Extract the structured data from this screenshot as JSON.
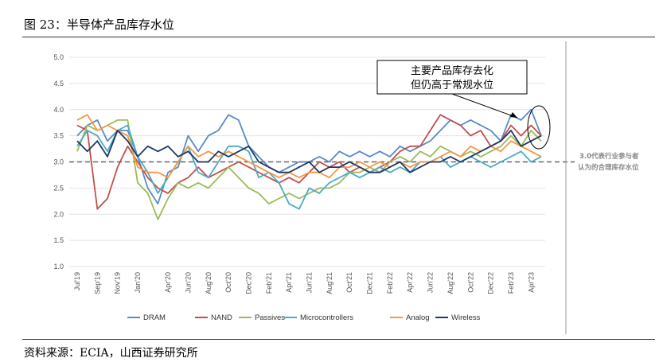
{
  "figure": {
    "title": "图 23：半导体产品库存水位",
    "source": "资料来源：ECIA，山西证券研究所"
  },
  "chart_data": {
    "type": "line",
    "title": "",
    "xlabel": "",
    "ylabel": "",
    "ylim": [
      1.0,
      5.0
    ],
    "yticks": [
      "5.0",
      "4.5",
      "4.0",
      "3.5",
      "3.0",
      "2.5",
      "2.0",
      "1.5",
      "1.0"
    ],
    "xtick_labels": [
      "Jul'19",
      "Sep'19",
      "Nov'19",
      "Jan'20",
      "Apr'20",
      "Jun'20",
      "Aug'20",
      "Oct'20",
      "Dec'20",
      "Feb'21",
      "Apr'21",
      "Jun'21",
      "Aug'21",
      "Oct'21",
      "Dec'21",
      "Feb'22",
      "Apr'22",
      "Jun'22",
      "Aug'22",
      "Oct'22",
      "Dec'22",
      "Feb'23",
      "Apr'23"
    ],
    "x": [
      "Jul'19",
      "Aug'19",
      "Sep'19",
      "Oct'19",
      "Nov'19",
      "Dec'19",
      "Jan'20",
      "Feb'20",
      "Mar'20",
      "Apr'20",
      "May'20",
      "Jun'20",
      "Jul'20",
      "Aug'20",
      "Sep'20",
      "Oct'20",
      "Nov'20",
      "Dec'20",
      "Jan'21",
      "Feb'21",
      "Mar'21",
      "Apr'21",
      "May'21",
      "Jun'21",
      "Jul'21",
      "Aug'21",
      "Sep'21",
      "Oct'21",
      "Nov'21",
      "Dec'21",
      "Jan'22",
      "Feb'22",
      "Mar'22",
      "Apr'22",
      "May'22",
      "Jun'22",
      "Jul'22",
      "Aug'22",
      "Sep'22",
      "Oct'22",
      "Nov'22",
      "Dec'22",
      "Jan'23",
      "Feb'23",
      "Mar'23",
      "Apr'23",
      "May'23"
    ],
    "grid": "horizontal",
    "legend_position": "bottom",
    "reference_line": 3.0,
    "series": [
      {
        "name": "DRAM",
        "color": "#5b8ac4",
        "values": [
          3.5,
          3.7,
          3.8,
          3.4,
          3.6,
          3.6,
          3.1,
          2.5,
          2.2,
          2.8,
          2.9,
          3.5,
          3.2,
          3.5,
          3.6,
          3.9,
          3.8,
          3.3,
          3.1,
          2.9,
          2.8,
          2.9,
          3.0,
          3.0,
          3.1,
          3.0,
          3.2,
          3.1,
          3.2,
          3.1,
          3.2,
          3.1,
          3.3,
          3.2,
          3.3,
          3.4,
          3.6,
          3.8,
          3.7,
          3.8,
          3.7,
          3.6,
          3.4,
          3.9,
          3.8,
          4.0,
          3.5
        ]
      },
      {
        "name": "NAND",
        "color": "#c0504d",
        "values": [
          3.7,
          3.6,
          2.1,
          2.3,
          2.9,
          3.3,
          3.0,
          2.7,
          2.5,
          2.4,
          2.6,
          2.7,
          2.9,
          2.7,
          2.8,
          2.9,
          3.0,
          2.9,
          2.8,
          2.7,
          2.6,
          2.7,
          2.6,
          2.8,
          3.0,
          2.9,
          3.0,
          2.8,
          2.9,
          2.8,
          2.9,
          3.0,
          3.2,
          3.3,
          3.3,
          3.6,
          3.9,
          3.8,
          3.7,
          3.5,
          3.6,
          3.3,
          3.4,
          3.7,
          3.5,
          3.7,
          3.5
        ]
      },
      {
        "name": "Passives",
        "color": "#9bbb59",
        "values": [
          3.2,
          3.7,
          3.6,
          3.7,
          3.8,
          3.8,
          2.6,
          2.4,
          1.9,
          2.3,
          2.6,
          2.5,
          2.6,
          2.5,
          2.7,
          2.9,
          2.7,
          2.5,
          2.4,
          2.2,
          2.3,
          2.4,
          2.3,
          2.4,
          2.5,
          2.5,
          2.6,
          2.8,
          2.8,
          2.9,
          2.8,
          3.0,
          3.1,
          3.0,
          3.2,
          3.1,
          3.3,
          3.2,
          3.1,
          3.2,
          3.1,
          3.2,
          3.3,
          3.5,
          3.3,
          3.6,
          3.4
        ]
      },
      {
        "name": "Microcontrollers",
        "color": "#4bacc6",
        "values": [
          3.3,
          3.6,
          3.5,
          3.2,
          3.6,
          3.7,
          3.1,
          2.8,
          2.4,
          2.7,
          3.0,
          3.3,
          2.8,
          2.7,
          3.0,
          3.3,
          3.3,
          3.2,
          2.7,
          2.8,
          2.6,
          2.2,
          2.1,
          2.5,
          2.4,
          2.6,
          2.7,
          2.8,
          2.7,
          2.8,
          2.9,
          2.8,
          2.9,
          2.8,
          3.0,
          3.0,
          3.1,
          2.9,
          3.0,
          3.1,
          3.0,
          2.9,
          3.0,
          3.1,
          3.2,
          3.0,
          3.1
        ]
      },
      {
        "name": "Analog",
        "color": "#f79646",
        "values": [
          3.8,
          3.9,
          3.6,
          3.7,
          3.6,
          3.5,
          2.9,
          2.8,
          2.8,
          2.7,
          3.0,
          3.3,
          3.1,
          3.2,
          3.1,
          3.2,
          3.1,
          3.0,
          2.9,
          2.8,
          2.7,
          2.8,
          2.7,
          2.8,
          2.8,
          2.7,
          2.9,
          2.9,
          3.0,
          2.9,
          3.0,
          2.9,
          3.0,
          2.9,
          3.0,
          3.0,
          3.1,
          3.2,
          3.1,
          3.3,
          3.2,
          3.3,
          3.2,
          3.4,
          3.3,
          3.2,
          3.1
        ]
      },
      {
        "name": "Wireless",
        "color": "#1f3864",
        "values": [
          3.4,
          3.2,
          3.4,
          3.1,
          3.6,
          3.4,
          3.1,
          3.3,
          3.2,
          3.3,
          3.1,
          3.2,
          3.0,
          3.0,
          3.2,
          3.1,
          3.2,
          3.3,
          3.0,
          2.9,
          2.8,
          2.8,
          2.9,
          3.0,
          2.8,
          2.9,
          2.9,
          3.0,
          2.9,
          2.8,
          2.8,
          2.9,
          3.0,
          2.8,
          2.9,
          3.0,
          3.0,
          3.1,
          3.0,
          3.1,
          3.2,
          3.3,
          3.4,
          3.6,
          3.3,
          3.4,
          3.5
        ]
      }
    ],
    "annotations": {
      "callout_line1": "主要产品库存去化",
      "callout_line2": "但仍高于常规水位",
      "side_note_line1": "3.0代表行业参与者",
      "side_note_line2": "认为的合理库存水位"
    }
  }
}
